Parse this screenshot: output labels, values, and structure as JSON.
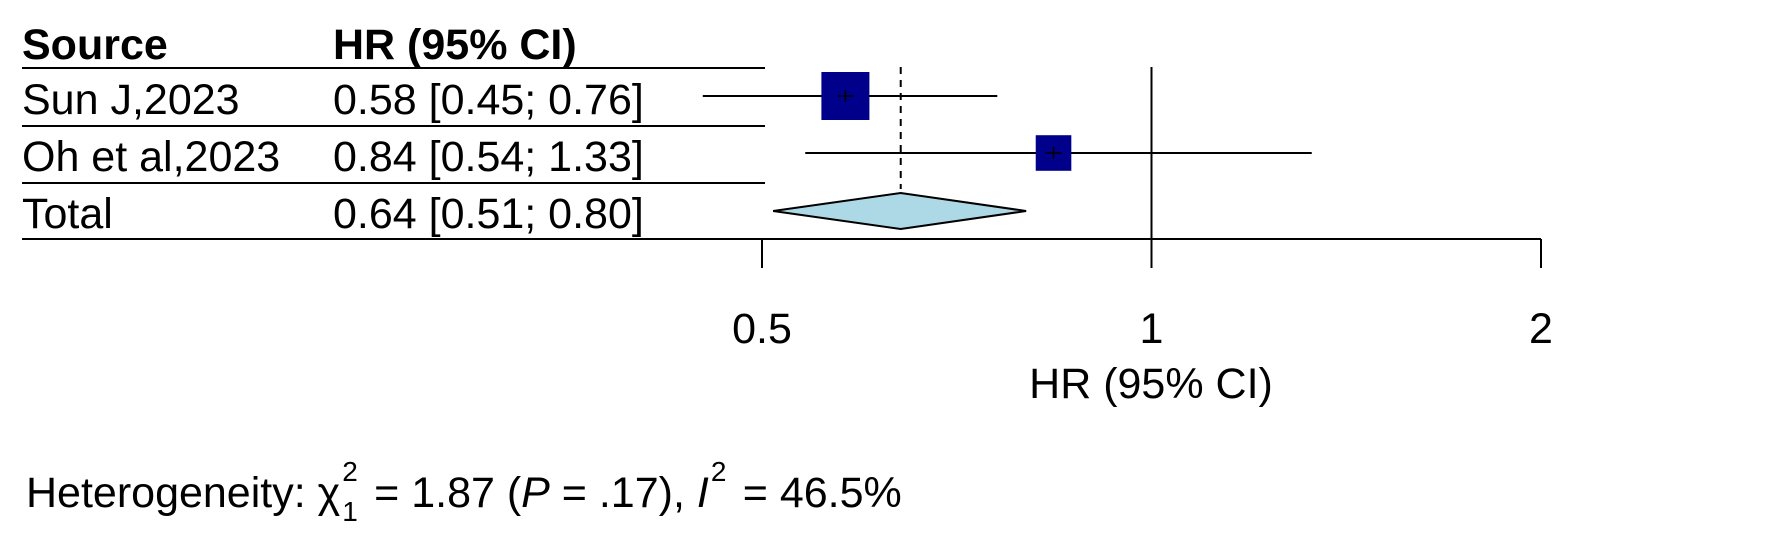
{
  "table": {
    "header": {
      "source": "Source",
      "hr": "HR (95% CI)"
    },
    "rows": [
      {
        "source": "Sun J,2023",
        "hr_text": "0.58 [0.45; 0.76]"
      },
      {
        "source": "Oh et al,2023",
        "hr_text": "0.84 [0.54; 1.33]"
      },
      {
        "source": "Total",
        "hr_text": "0.64 [0.51; 0.80]"
      }
    ]
  },
  "chart_data": {
    "type": "forest",
    "scale": "log",
    "xlabel": "HR (95% CI)",
    "xlim": [
      0.5,
      2
    ],
    "ticks": [
      0.5,
      1,
      2
    ],
    "tick_labels": [
      "0.5",
      "1",
      "2"
    ],
    "reference_line": 1,
    "pooled_line": 0.64,
    "studies": [
      {
        "name": "Sun J,2023",
        "hr": 0.58,
        "lower": 0.45,
        "upper": 0.76,
        "weight_rel": 1.0
      },
      {
        "name": "Oh et al,2023",
        "hr": 0.84,
        "lower": 0.54,
        "upper": 1.33,
        "weight_rel": 0.55
      }
    ],
    "pooled": {
      "name": "Total",
      "hr": 0.64,
      "lower": 0.51,
      "upper": 0.8
    },
    "colors": {
      "square": "#00008b",
      "diamond": "#add8e6",
      "line": "#000000"
    }
  },
  "heterogeneity": {
    "prefix": "Heterogeneity: ",
    "chi_symbol": "χ",
    "chi_sup": "2",
    "chi_sub": "1",
    "chi_value": " = 1.87 (",
    "p_symbol": "P",
    "p_value": " = .17), ",
    "i_symbol": "I",
    "i_sup": "2",
    "i_value": " = 46.5%"
  }
}
